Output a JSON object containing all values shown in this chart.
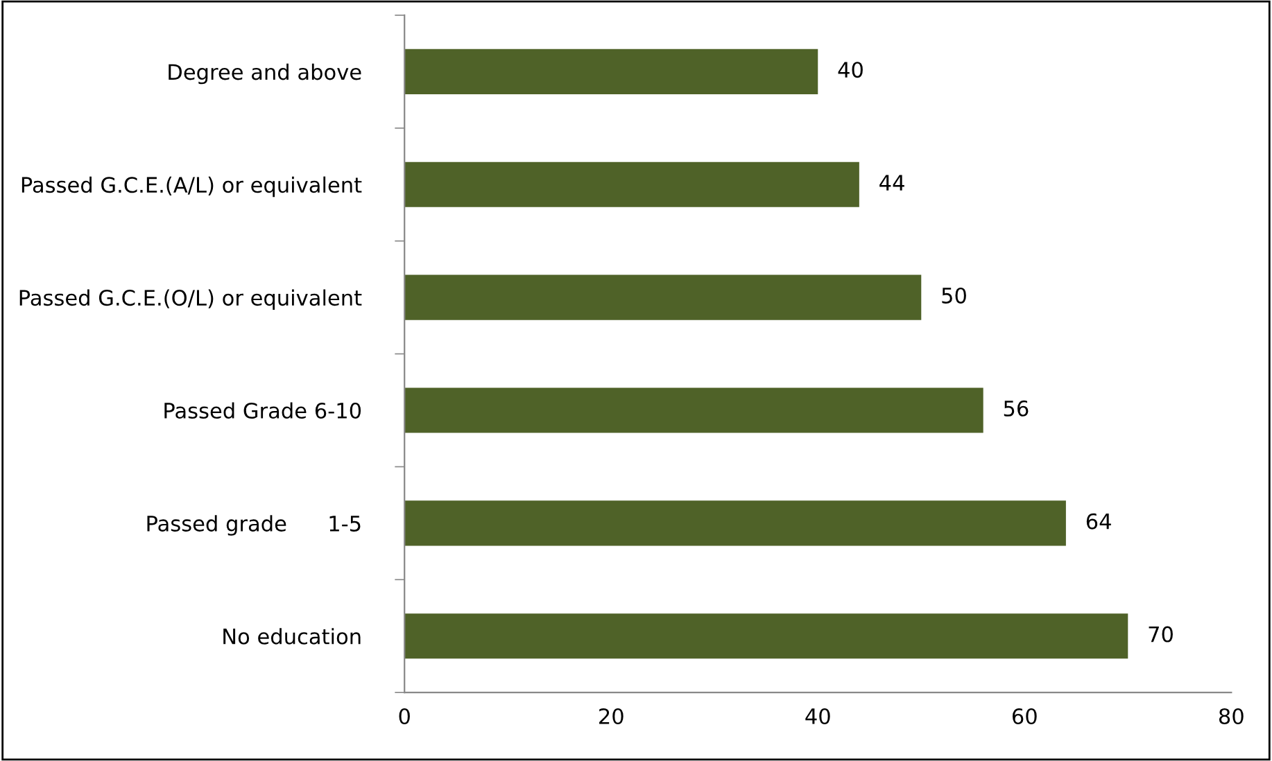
{
  "chart_data": {
    "type": "bar",
    "orientation": "horizontal",
    "categories": [
      "Degree and above",
      "Passed G.C.E.(A/L) or equivalent",
      "Passed G.C.E.(O/L) or equivalent",
      "Passed Grade 6-10",
      "Passed grade      1-5",
      "No education"
    ],
    "values": [
      40,
      44,
      50,
      56,
      64,
      70
    ],
    "color": "#4f6228",
    "xlim": [
      0,
      80
    ],
    "xticks": [
      0,
      20,
      40,
      60,
      80
    ],
    "data_labels": true,
    "grid": false,
    "legend": false
  }
}
